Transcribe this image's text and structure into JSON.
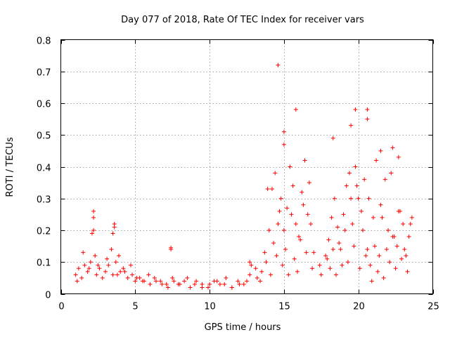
{
  "chart_data": {
    "type": "scatter",
    "title": "Day 077 of 2018, Rate Of TEC Index for receiver vars",
    "xlabel": "GPS time / hours",
    "ylabel": "ROTI / TECUs",
    "xlim": [
      0,
      25
    ],
    "ylim": [
      0,
      0.8
    ],
    "xticks": [
      0,
      5,
      10,
      15,
      20,
      25
    ],
    "xtick_labels": [
      "0",
      "5",
      "10",
      "15",
      "20",
      "25"
    ],
    "yticks": [
      0,
      0.1,
      0.2,
      0.3,
      0.4,
      0.5,
      0.6,
      0.7,
      0.8
    ],
    "ytick_labels": [
      "0",
      "0.1",
      "0.2",
      "0.3",
      "0.4",
      "0.5",
      "0.6",
      "0.7",
      "0.8"
    ],
    "grid": true,
    "marker": "+",
    "series": [
      {
        "name": "ROTI",
        "color": "#ff0000",
        "x": [
          1.0,
          1.2,
          1.4,
          1.6,
          1.8,
          2.0,
          2.1,
          2.2,
          2.3,
          2.4,
          2.6,
          2.8,
          3.0,
          3.2,
          3.4,
          3.5,
          3.6,
          3.7,
          3.8,
          4.0,
          4.2,
          4.5,
          4.8,
          5.0,
          5.3,
          5.6,
          6.0,
          6.4,
          6.8,
          7.2,
          7.4,
          7.6,
          8.0,
          8.5,
          9.0,
          9.5,
          10.0,
          10.5,
          11.0,
          11.5,
          12.0,
          12.5,
          12.8,
          13.2,
          13.5,
          13.8,
          14.0,
          14.2,
          14.4,
          14.6,
          14.7,
          14.8,
          15.0,
          15.2,
          15.4,
          15.6,
          15.8,
          16.0,
          16.2,
          16.4,
          16.6,
          16.8,
          17.0,
          17.4,
          17.8,
          18.0,
          18.2,
          18.4,
          18.6,
          18.8,
          19.0,
          19.2,
          19.4,
          19.6,
          19.8,
          20.0,
          20.2,
          20.4,
          20.6,
          20.8,
          21.0,
          21.2,
          21.4,
          21.6,
          21.8,
          22.0,
          22.2,
          22.4,
          22.6,
          22.8,
          23.0,
          23.2,
          23.4,
          23.6,
          1.1,
          1.5,
          1.9,
          2.2,
          2.5,
          3.1,
          3.5,
          3.9,
          4.3,
          4.7,
          5.1,
          5.5,
          5.9,
          6.3,
          6.7,
          7.1,
          7.5,
          7.9,
          8.3,
          8.7,
          9.1,
          9.5,
          9.9,
          10.3,
          10.7,
          11.1,
          11.5,
          11.9,
          12.3,
          12.7,
          13.1,
          13.4,
          13.7,
          14.1,
          14.3,
          14.5,
          14.9,
          15.1,
          15.3,
          15.5,
          15.7,
          15.9,
          16.1,
          16.3,
          16.5,
          16.7,
          16.9,
          17.5,
          17.9,
          18.1,
          18.3,
          18.5,
          18.7,
          18.9,
          19.1,
          19.3,
          19.5,
          19.7,
          19.9,
          20.1,
          20.3,
          20.5,
          20.7,
          20.9,
          21.1,
          21.3,
          21.5,
          21.7,
          21.9,
          22.1,
          22.3,
          22.5,
          22.7,
          22.9,
          23.1,
          23.3,
          23.5,
          14.6,
          15.8,
          19.8,
          20.6,
          20.6,
          19.5,
          18.3,
          22.3,
          21.5,
          15.0,
          15.0,
          22.7,
          2.2,
          3.6,
          7.4,
          12.7,
          13.9
        ],
        "y": [
          0.06,
          0.08,
          0.05,
          0.09,
          0.07,
          0.1,
          0.19,
          0.24,
          0.12,
          0.06,
          0.08,
          0.05,
          0.07,
          0.09,
          0.14,
          0.19,
          0.21,
          0.1,
          0.06,
          0.07,
          0.08,
          0.05,
          0.06,
          0.04,
          0.05,
          0.04,
          0.03,
          0.04,
          0.03,
          0.02,
          0.14,
          0.04,
          0.03,
          0.05,
          0.03,
          0.02,
          0.03,
          0.04,
          0.03,
          0.02,
          0.03,
          0.04,
          0.09,
          0.05,
          0.07,
          0.1,
          0.2,
          0.33,
          0.38,
          0.22,
          0.26,
          0.3,
          0.2,
          0.27,
          0.4,
          0.34,
          0.22,
          0.18,
          0.32,
          0.42,
          0.25,
          0.22,
          0.13,
          0.09,
          0.12,
          0.17,
          0.24,
          0.3,
          0.21,
          0.14,
          0.25,
          0.34,
          0.38,
          0.22,
          0.4,
          0.3,
          0.26,
          0.36,
          0.14,
          0.09,
          0.24,
          0.42,
          0.12,
          0.24,
          0.36,
          0.2,
          0.38,
          0.18,
          0.15,
          0.26,
          0.22,
          0.12,
          0.18,
          0.24,
          0.04,
          0.13,
          0.08,
          0.2,
          0.09,
          0.11,
          0.06,
          0.12,
          0.07,
          0.09,
          0.05,
          0.04,
          0.06,
          0.05,
          0.04,
          0.03,
          0.05,
          0.03,
          0.04,
          0.02,
          0.04,
          0.03,
          0.02,
          0.04,
          0.03,
          0.05,
          0.02,
          0.04,
          0.03,
          0.06,
          0.08,
          0.04,
          0.13,
          0.06,
          0.16,
          0.12,
          0.09,
          0.14,
          0.06,
          0.25,
          0.11,
          0.07,
          0.17,
          0.28,
          0.13,
          0.35,
          0.08,
          0.06,
          0.11,
          0.08,
          0.14,
          0.06,
          0.16,
          0.09,
          0.2,
          0.1,
          0.3,
          0.15,
          0.34,
          0.08,
          0.2,
          0.12,
          0.3,
          0.04,
          0.15,
          0.07,
          0.28,
          0.05,
          0.14,
          0.1,
          0.18,
          0.08,
          0.26,
          0.11,
          0.14,
          0.07,
          0.22,
          0.72,
          0.58,
          0.58,
          0.58,
          0.55,
          0.53,
          0.49,
          0.46,
          0.45,
          0.51,
          0.47,
          0.43,
          0.26,
          0.22,
          0.145,
          0.1,
          0.33
        ]
      }
    ]
  }
}
